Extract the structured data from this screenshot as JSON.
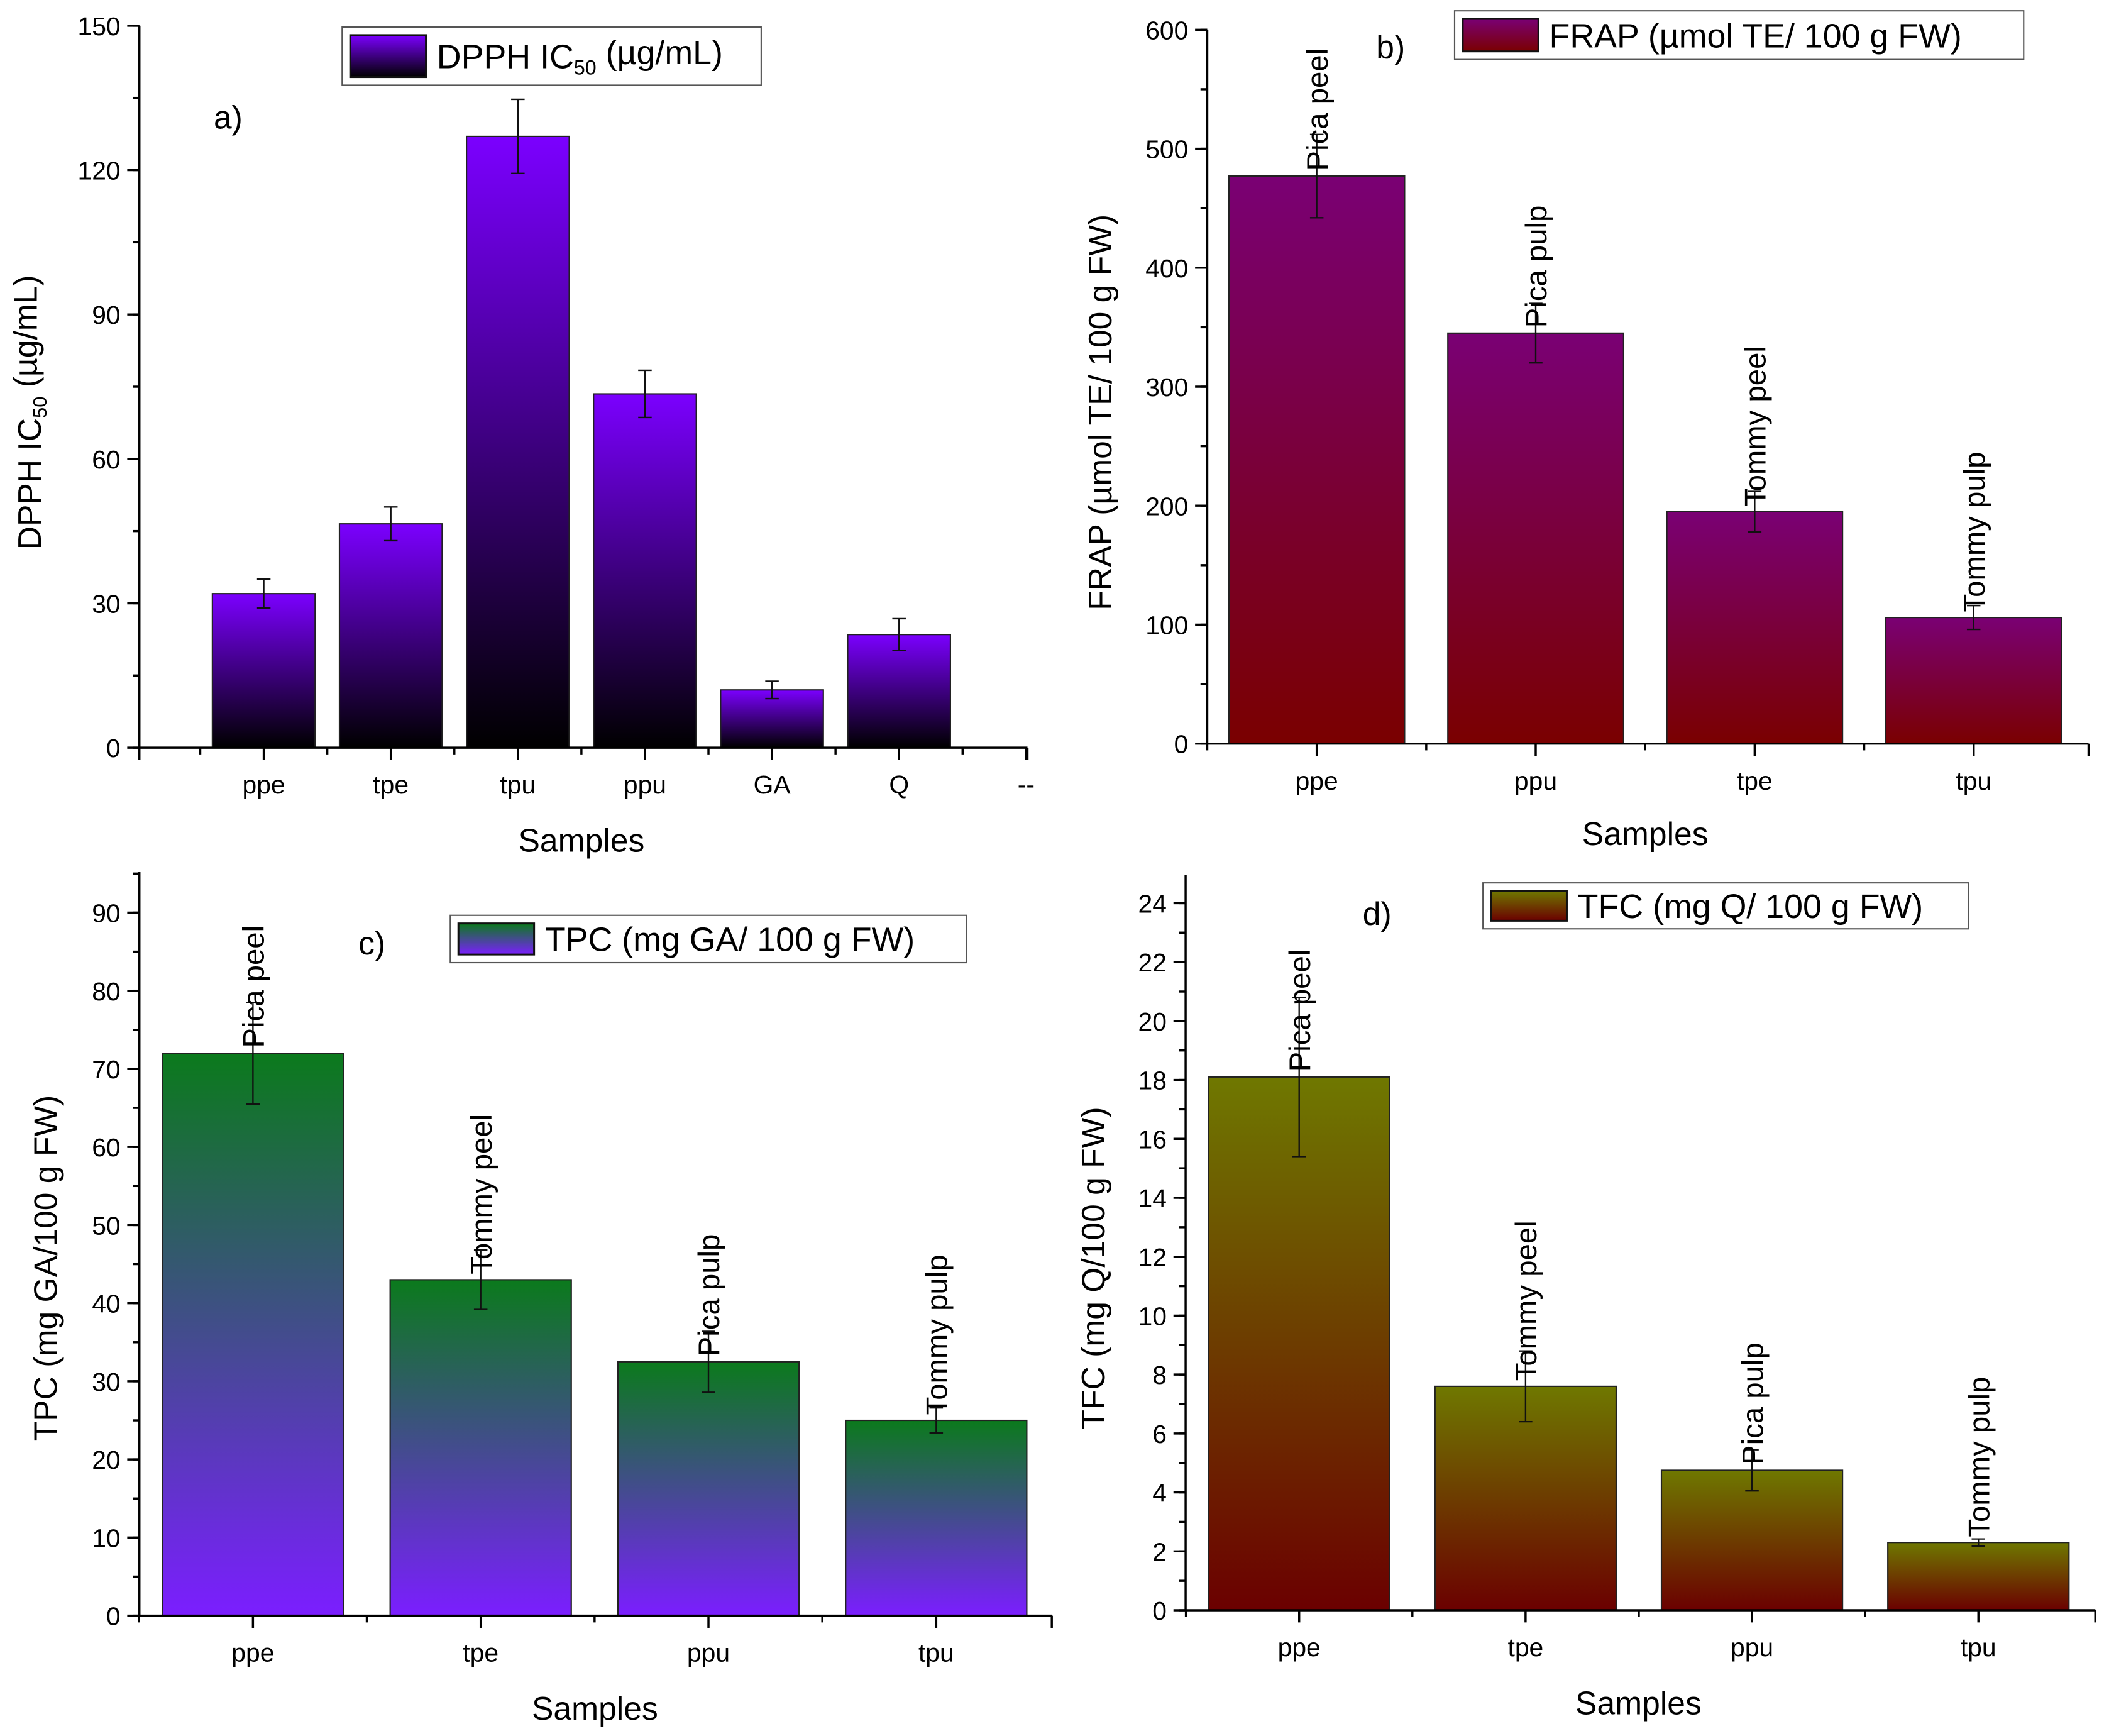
{
  "chart_data": [
    {
      "type": "bar",
      "panel": "a)",
      "legend": "DPPH IC50 (µg/mL)",
      "xlabel": "Samples",
      "ylabel": "DPPH IC50 (µg/mL)",
      "ylim": [
        0,
        150
      ],
      "yticks": [
        0,
        30,
        60,
        90,
        120,
        150
      ],
      "categories": [
        "ppe",
        "tpe",
        "tpu",
        "ppu",
        "GA",
        "Q",
        "--"
      ],
      "values": [
        32,
        46.5,
        127,
        73.5,
        12,
        23.5,
        null
      ],
      "errors": [
        3,
        3.5,
        7.7,
        4.9,
        1.8,
        3.3,
        null
      ],
      "bar_labels": [],
      "gradient": [
        "#7b00ff",
        "#000000"
      ]
    },
    {
      "type": "bar",
      "panel": "b)",
      "legend": "FRAP (µmol TE/ 100 g FW)",
      "xlabel": "Samples",
      "ylabel": "FRAP (µmol TE/ 100 g FW)",
      "ylim": [
        0,
        600
      ],
      "yticks": [
        0,
        100,
        200,
        300,
        400,
        500,
        600
      ],
      "categories": [
        "ppe",
        "ppu",
        "tpe",
        "tpu"
      ],
      "values": [
        477,
        345,
        195,
        106
      ],
      "errors": [
        35,
        25,
        17,
        10
      ],
      "bar_labels": [
        "Pica peel",
        "Pica pulp",
        "Tommy peel",
        "Tommy pulp"
      ],
      "gradient": [
        "#7a0074",
        "#7a0000"
      ]
    },
    {
      "type": "bar",
      "panel": "c)",
      "legend": "TPC (mg GA/ 100 g FW)",
      "xlabel": "Samples",
      "ylabel": "TPC (mg GA/100 g FW)",
      "ylim": [
        0,
        95
      ],
      "yticks": [
        0,
        10,
        20,
        30,
        40,
        50,
        60,
        70,
        80,
        90
      ],
      "categories": [
        "ppe",
        "tpe",
        "ppu",
        "tpu"
      ],
      "values": [
        72,
        43,
        32.5,
        25
      ],
      "errors": [
        6.5,
        3.8,
        3.9,
        1.6
      ],
      "bar_labels": [
        "Pica peel",
        "Tommy peel",
        "Pica pulp",
        "Tommy pulp"
      ],
      "gradient": [
        "#0b7a1c",
        "#7b1eff"
      ]
    },
    {
      "type": "bar",
      "panel": "d)",
      "legend": "TFC (mg Q/ 100 g FW)",
      "xlabel": "Samples",
      "ylabel": "TFC (mg Q/100 g FW)",
      "ylim": [
        0,
        25
      ],
      "yticks": [
        0,
        2,
        4,
        6,
        8,
        10,
        12,
        14,
        16,
        18,
        20,
        22,
        24
      ],
      "categories": [
        "ppe",
        "tpe",
        "ppu",
        "tpu"
      ],
      "values": [
        18.1,
        7.6,
        4.75,
        2.3
      ],
      "errors": [
        2.7,
        1.2,
        0.7,
        0.12
      ],
      "bar_labels": [
        "Pica peel",
        "Tommy peel",
        "Pica pulp",
        "Tommy pulp"
      ],
      "gradient": [
        "#6f7800",
        "#6b0000"
      ]
    }
  ]
}
